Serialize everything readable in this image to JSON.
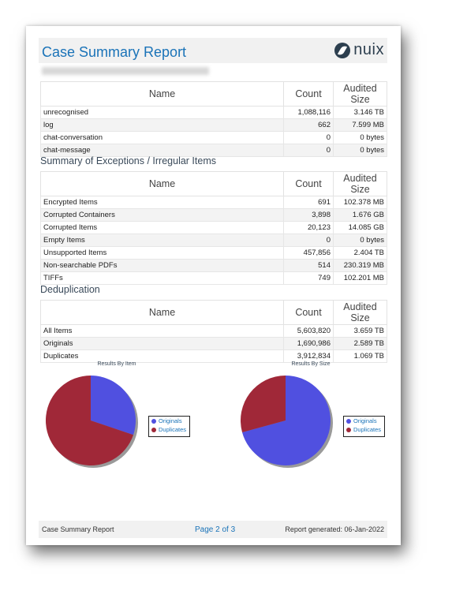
{
  "report": {
    "title": "Case Summary Report",
    "logo_text": "nuix"
  },
  "tables": {
    "columns": [
      "Name",
      "Count",
      "Audited Size"
    ],
    "types": {
      "rows": [
        {
          "name": "unrecognised",
          "count": "1,088,116",
          "size": "3.146 TB"
        },
        {
          "name": "log",
          "count": "662",
          "size": "7.599 MB"
        },
        {
          "name": "chat-conversation",
          "count": "0",
          "size": "0 bytes"
        },
        {
          "name": "chat-message",
          "count": "0",
          "size": "0 bytes"
        }
      ]
    },
    "exceptions": {
      "heading": "Summary of Exceptions / Irregular Items",
      "rows": [
        {
          "name": "Encrypted Items",
          "count": "691",
          "size": "102.378 MB"
        },
        {
          "name": "Corrupted Containers",
          "count": "3,898",
          "size": "1.676 GB"
        },
        {
          "name": "Corrupted Items",
          "count": "20,123",
          "size": "14.085 GB"
        },
        {
          "name": "Empty Items",
          "count": "0",
          "size": "0 bytes"
        },
        {
          "name": "Unsupported Items",
          "count": "457,856",
          "size": "2.404 TB"
        },
        {
          "name": "Non-searchable PDFs",
          "count": "514",
          "size": "230.319 MB"
        },
        {
          "name": "TIFFs",
          "count": "749",
          "size": "102.201 MB"
        }
      ]
    },
    "dedup": {
      "heading": "Deduplication",
      "rows": [
        {
          "name": "All Items",
          "count": "5,603,820",
          "size": "3.659 TB"
        },
        {
          "name": "Originals",
          "count": "1,690,986",
          "size": "2.589 TB"
        },
        {
          "name": "Duplicates",
          "count": "3,912,834",
          "size": "1.069 TB"
        }
      ]
    }
  },
  "chart_data": [
    {
      "type": "pie",
      "title": "Results By Item",
      "categories": [
        "Originals",
        "Duplicates"
      ],
      "values": [
        1690986,
        3912834
      ],
      "colors": [
        "#5050e0",
        "#a02838"
      ],
      "legend": "right"
    },
    {
      "type": "pie",
      "title": "Results By Size",
      "categories": [
        "Originals",
        "Duplicates"
      ],
      "values": [
        2.589,
        1.069
      ],
      "colors": [
        "#5050e0",
        "#a02838"
      ],
      "legend": "right"
    }
  ],
  "footer": {
    "left": "Case Summary Report",
    "page": "Page 2 of 3",
    "generated": "Report generated: 06-Jan-2022"
  }
}
